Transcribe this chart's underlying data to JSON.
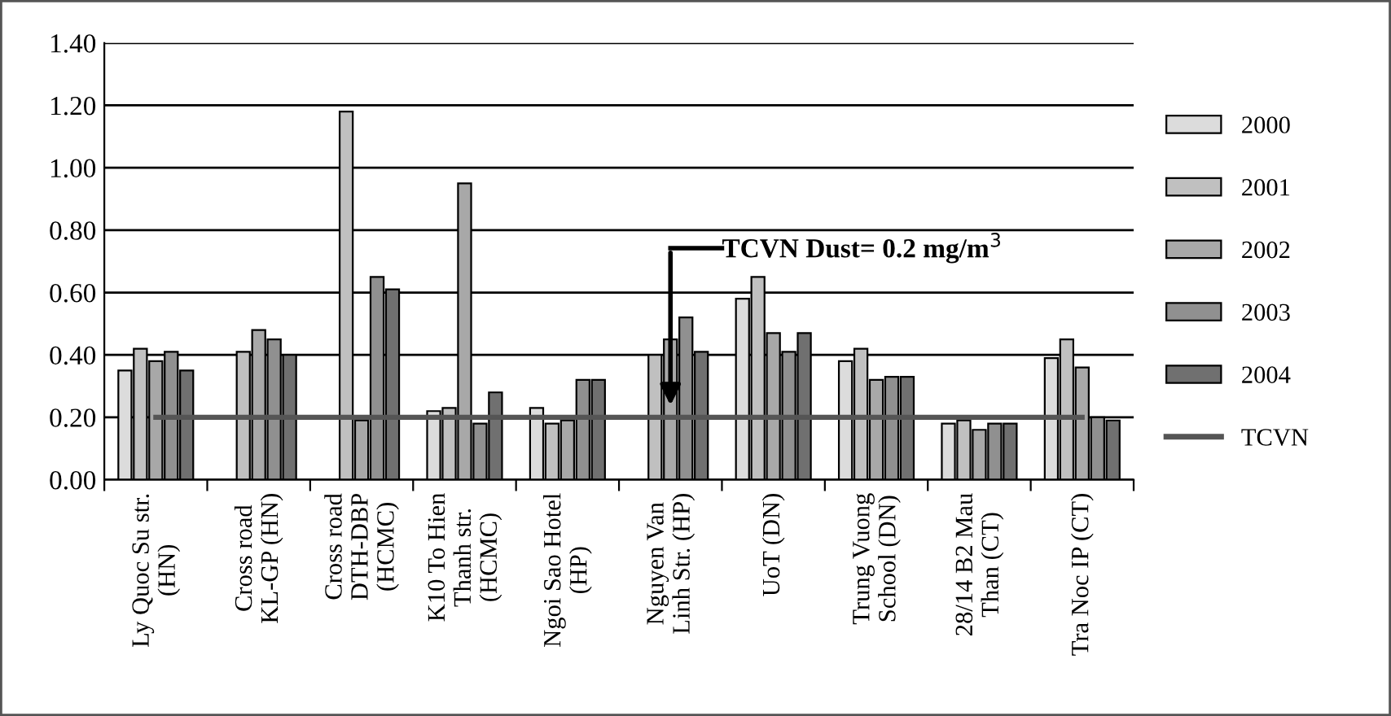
{
  "chart_data": {
    "type": "bar",
    "categories": [
      "Ly Quoc Su str.\n(HN)",
      "Cross road\nKL-GP (HN)",
      "Cross road\nDTH-DBP\n(HCMC)",
      "K10 To Hien\nThanh str.\n(HCMC)",
      "Ngoi Sao Hotel\n(HP)",
      "Nguyen Van\nLinh Str. (HP)",
      "UoT (DN)",
      "Trung Vuong\nSchool (DN)",
      "28/14 B2 Mau\nThan (CT)",
      "Tra Noc IP (CT)"
    ],
    "series": [
      {
        "name": "2000",
        "color": "#dcdcdc",
        "values": [
          0.35,
          null,
          null,
          0.22,
          0.23,
          null,
          0.58,
          0.38,
          0.18,
          0.39
        ]
      },
      {
        "name": "2001",
        "color": "#c0c0c0",
        "values": [
          0.42,
          0.41,
          1.18,
          0.23,
          0.18,
          0.4,
          0.65,
          0.42,
          0.19,
          0.45
        ]
      },
      {
        "name": "2002",
        "color": "#a8a8a8",
        "values": [
          0.38,
          0.48,
          0.19,
          0.95,
          0.19,
          0.45,
          0.47,
          0.32,
          0.16,
          0.36
        ]
      },
      {
        "name": "2003",
        "color": "#909090",
        "values": [
          0.41,
          0.45,
          0.65,
          0.18,
          0.32,
          0.52,
          0.41,
          0.33,
          0.18,
          0.2
        ]
      },
      {
        "name": "2004",
        "color": "#707070",
        "values": [
          0.35,
          0.4,
          0.61,
          0.28,
          0.32,
          0.41,
          0.47,
          0.33,
          0.18,
          0.19
        ]
      },
      {
        "name": "TCVN",
        "type": "line",
        "color": "#555555",
        "values": [
          0.2,
          0.2,
          0.2,
          0.2,
          0.2,
          0.2,
          0.2,
          0.2,
          0.2,
          0.2
        ]
      }
    ],
    "ylim": [
      0,
      1.4
    ],
    "yticks": [
      {
        "value": 0,
        "label": "0.00"
      },
      {
        "value": 0.2,
        "label": "0.20"
      },
      {
        "value": 0.4,
        "label": "0.40"
      },
      {
        "value": 0.6,
        "label": "0.60"
      },
      {
        "value": 0.8,
        "label": "0.80"
      },
      {
        "value": 1.0,
        "label": "1.00"
      },
      {
        "value": 1.2,
        "label": "1.20"
      },
      {
        "value": 1.4,
        "label": "1.40"
      }
    ],
    "grid": "y",
    "legend": "right",
    "annotations": [
      "TCVN Dust= 0.2 mg/m$^{3}$"
    ]
  }
}
